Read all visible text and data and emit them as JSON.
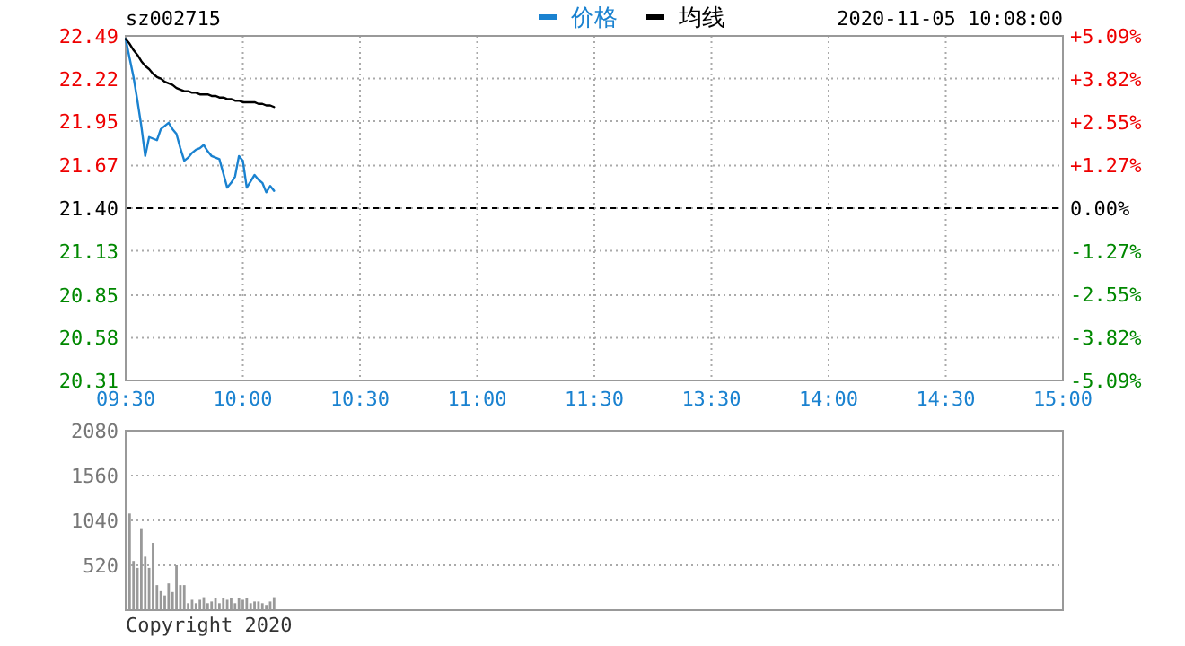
{
  "chart_data": [
    {
      "type": "line",
      "title": "sz002715",
      "legend": "top",
      "grid": true,
      "annotations": [
        "2020-11-05 10:08:00"
      ],
      "categories": [
        "09:30",
        null,
        null,
        null,
        null,
        null,
        null,
        null,
        null,
        null,
        null,
        null,
        null,
        null,
        null,
        null,
        null,
        null,
        null,
        null,
        null,
        null,
        null,
        null,
        null,
        null,
        null,
        null,
        null,
        null,
        "10:00",
        null,
        null,
        null,
        null,
        null,
        null,
        null,
        null,
        null,
        null,
        null,
        null,
        null,
        null,
        null,
        null,
        null,
        null,
        null,
        null,
        null,
        null,
        null,
        null,
        null,
        null,
        null,
        null,
        null,
        "10:30",
        null,
        null,
        null,
        null,
        null,
        null,
        null,
        null,
        null,
        null,
        null,
        null,
        null,
        null,
        null,
        null,
        null,
        null,
        null,
        null,
        null,
        null,
        null,
        null,
        null,
        null,
        null,
        null,
        null,
        "11:00",
        null,
        null,
        null,
        null,
        null,
        null,
        null,
        null,
        null,
        null,
        null,
        null,
        null,
        null,
        null,
        null,
        null,
        null,
        null,
        null,
        null,
        null,
        null,
        null,
        null,
        null,
        null,
        null,
        null,
        "11:30",
        null,
        null,
        null,
        null,
        null,
        null,
        null,
        null,
        null,
        null,
        null,
        null,
        null,
        null,
        null,
        null,
        null,
        null,
        null,
        null,
        null,
        null,
        null,
        null,
        null,
        null,
        null,
        null,
        null,
        "13:30",
        null,
        null,
        null,
        null,
        null,
        null,
        null,
        null,
        null,
        null,
        null,
        null,
        null,
        null,
        null,
        null,
        null,
        null,
        null,
        null,
        null,
        null,
        null,
        null,
        null,
        null,
        null,
        null,
        null,
        "14:00",
        null,
        null,
        null,
        null,
        null,
        null,
        null,
        null,
        null,
        null,
        null,
        null,
        null,
        null,
        null,
        null,
        null,
        null,
        null,
        null,
        null,
        null,
        null,
        null,
        null,
        null,
        null,
        null,
        null,
        "14:30",
        null,
        null,
        null,
        null,
        null,
        null,
        null,
        null,
        null,
        null,
        null,
        null,
        null,
        null,
        null,
        null,
        null,
        null,
        null,
        null,
        null,
        null,
        null,
        null,
        null,
        null,
        null,
        null,
        null,
        "15:00"
      ],
      "ylim": [
        20.31,
        22.49
      ],
      "yticks": [
        22.49,
        22.22,
        21.95,
        21.67,
        {
          "value": 21.4,
          "label": "21.40"
        },
        21.13,
        20.85,
        20.58,
        20.31
      ],
      "y2lim": [
        -5.09,
        5.09
      ],
      "y2ticks": [
        {
          "value": 5.09,
          "label": "+5.09%"
        },
        {
          "value": 3.82,
          "label": "+3.82%"
        },
        {
          "value": 2.55,
          "label": "+2.55%"
        },
        {
          "value": 1.27,
          "label": "+1.27%"
        },
        {
          "value": 0,
          "label": "0.00%"
        },
        {
          "value": -1.27,
          "label": "-1.27%"
        },
        {
          "value": -2.55,
          "label": "-2.55%"
        },
        {
          "value": -3.82,
          "label": "-3.82%"
        },
        {
          "value": -5.09,
          "label": "-5.09%"
        }
      ],
      "ref_lines": [
        {
          "axis": "y",
          "value": 21.4,
          "color": "#000000",
          "line_style": "dashed"
        }
      ],
      "series": [
        {
          "name": "价格",
          "color": "#1a82d0",
          "values": [
            22.47,
            22.35,
            22.23,
            22.08,
            21.92,
            21.73,
            21.85,
            21.84,
            21.83,
            21.9,
            21.92,
            21.94,
            21.9,
            21.87,
            21.78,
            21.7,
            21.72,
            21.75,
            21.77,
            21.78,
            21.8,
            21.76,
            21.73,
            21.72,
            21.71,
            21.62,
            21.53,
            21.56,
            21.6,
            21.73,
            21.7,
            21.53,
            21.57,
            21.61,
            21.58,
            21.56,
            21.5,
            21.54,
            21.51,
            null,
            null,
            null,
            null,
            null,
            null,
            null,
            null,
            null,
            null,
            null,
            null,
            null,
            null,
            null,
            null,
            null,
            null,
            null,
            null,
            null,
            null,
            null,
            null,
            null,
            null,
            null,
            null,
            null,
            null,
            null,
            null,
            null,
            null,
            null,
            null,
            null,
            null,
            null,
            null,
            null,
            null,
            null,
            null,
            null,
            null,
            null,
            null,
            null,
            null,
            null,
            null,
            null,
            null,
            null,
            null,
            null,
            null,
            null,
            null,
            null,
            null,
            null,
            null,
            null,
            null,
            null,
            null,
            null,
            null,
            null,
            null,
            null,
            null,
            null,
            null,
            null,
            null,
            null,
            null,
            null,
            null,
            null,
            null,
            null,
            null,
            null,
            null,
            null,
            null,
            null,
            null,
            null,
            null,
            null,
            null,
            null,
            null,
            null,
            null,
            null,
            null,
            null,
            null,
            null,
            null,
            null,
            null,
            null,
            null,
            null,
            null,
            null,
            null,
            null,
            null,
            null,
            null,
            null,
            null,
            null,
            null,
            null,
            null,
            null,
            null,
            null,
            null,
            null,
            null,
            null,
            null,
            null,
            null,
            null,
            null,
            null,
            null,
            null,
            null,
            null,
            null,
            null,
            null,
            null,
            null,
            null,
            null,
            null,
            null,
            null,
            null,
            null,
            null,
            null,
            null,
            null,
            null,
            null,
            null,
            null,
            null,
            null,
            null,
            null,
            null,
            null,
            null,
            null,
            null,
            null,
            null,
            null,
            null,
            null,
            null,
            null,
            null,
            null,
            null,
            null,
            null,
            null,
            null,
            null,
            null,
            null,
            null,
            null,
            null,
            null,
            null,
            null,
            null,
            null,
            null,
            null,
            null,
            null,
            null,
            null,
            null
          ]
        },
        {
          "name": "均线",
          "color": "#000000",
          "values": [
            22.47,
            22.44,
            22.4,
            22.37,
            22.33,
            22.3,
            22.28,
            22.25,
            22.23,
            22.22,
            22.2,
            22.19,
            22.18,
            22.16,
            22.15,
            22.14,
            22.14,
            22.13,
            22.13,
            22.12,
            22.12,
            22.12,
            22.11,
            22.11,
            22.1,
            22.1,
            22.09,
            22.09,
            22.08,
            22.08,
            22.07,
            22.07,
            22.07,
            22.07,
            22.06,
            22.06,
            22.05,
            22.05,
            22.04,
            null,
            null,
            null,
            null,
            null,
            null,
            null,
            null,
            null,
            null,
            null,
            null,
            null,
            null,
            null,
            null,
            null,
            null,
            null,
            null,
            null,
            null,
            null,
            null,
            null,
            null,
            null,
            null,
            null,
            null,
            null,
            null,
            null,
            null,
            null,
            null,
            null,
            null,
            null,
            null,
            null,
            null,
            null,
            null,
            null,
            null,
            null,
            null,
            null,
            null,
            null,
            null,
            null,
            null,
            null,
            null,
            null,
            null,
            null,
            null,
            null,
            null,
            null,
            null,
            null,
            null,
            null,
            null,
            null,
            null,
            null,
            null,
            null,
            null,
            null,
            null,
            null,
            null,
            null,
            null,
            null,
            null,
            null,
            null,
            null,
            null,
            null,
            null,
            null,
            null,
            null,
            null,
            null,
            null,
            null,
            null,
            null,
            null,
            null,
            null,
            null,
            null,
            null,
            null,
            null,
            null,
            null,
            null,
            null,
            null,
            null,
            null,
            null,
            null,
            null,
            null,
            null,
            null,
            null,
            null,
            null,
            null,
            null,
            null,
            null,
            null,
            null,
            null,
            null,
            null,
            null,
            null,
            null,
            null,
            null,
            null,
            null,
            null,
            null,
            null,
            null,
            null,
            null,
            null,
            null,
            null,
            null,
            null,
            null,
            null,
            null,
            null,
            null,
            null,
            null,
            null,
            null,
            null,
            null,
            null,
            null,
            null,
            null,
            null,
            null,
            null,
            null,
            null,
            null,
            null,
            null,
            null,
            null,
            null,
            null,
            null,
            null,
            null,
            null,
            null,
            null,
            null,
            null,
            null,
            null,
            null,
            null,
            null,
            null,
            null,
            null,
            null,
            null,
            null,
            null,
            null,
            null,
            null,
            null,
            null,
            null,
            null
          ]
        }
      ]
    },
    {
      "type": "bar",
      "grid": "y",
      "tick_labels": "y",
      "annotations": [
        "Copyright 2020"
      ],
      "color": "#999999",
      "categories": [
        null,
        null,
        null,
        null,
        null,
        null,
        null,
        null,
        null,
        null,
        null,
        null,
        null,
        null,
        null,
        null,
        null,
        null,
        null,
        null,
        null,
        null,
        null,
        null,
        null,
        null,
        null,
        null,
        null,
        null,
        null,
        null,
        null,
        null,
        null,
        null,
        null,
        null,
        null,
        null,
        null,
        null,
        null,
        null,
        null,
        null,
        null,
        null,
        null,
        null,
        null,
        null,
        null,
        null,
        null,
        null,
        null,
        null,
        null,
        null,
        null,
        null,
        null,
        null,
        null,
        null,
        null,
        null,
        null,
        null,
        null,
        null,
        null,
        null,
        null,
        null,
        null,
        null,
        null,
        null,
        null,
        null,
        null,
        null,
        null,
        null,
        null,
        null,
        null,
        null,
        null,
        null,
        null,
        null,
        null,
        null,
        null,
        null,
        null,
        null,
        null,
        null,
        null,
        null,
        null,
        null,
        null,
        null,
        null,
        null,
        null,
        null,
        null,
        null,
        null,
        null,
        null,
        null,
        null,
        null,
        null,
        null,
        null,
        null,
        null,
        null,
        null,
        null,
        null,
        null,
        null,
        null,
        null,
        null,
        null,
        null,
        null,
        null,
        null,
        null,
        null,
        null,
        null,
        null,
        null,
        null,
        null,
        null,
        null,
        null,
        null,
        null,
        null,
        null,
        null,
        null,
        null,
        null,
        null,
        null,
        null,
        null,
        null,
        null,
        null,
        null,
        null,
        null,
        null,
        null,
        null,
        null,
        null,
        null,
        null,
        null,
        null,
        null,
        null,
        null,
        null,
        null,
        null,
        null,
        null,
        null,
        null,
        null,
        null,
        null,
        null,
        null,
        null,
        null,
        null,
        null,
        null,
        null,
        null,
        null,
        null,
        null,
        null,
        null,
        null,
        null,
        null,
        null,
        null,
        null,
        null,
        null,
        null,
        null,
        null,
        null,
        null,
        null,
        null,
        null,
        null,
        null,
        null,
        null,
        null,
        null,
        null,
        null,
        null,
        null,
        null,
        null,
        null,
        null,
        null,
        null,
        null,
        null,
        null,
        null,
        null
      ],
      "ylim": [
        0,
        2080
      ],
      "yticks": [
        520,
        1040,
        1560,
        2080
      ],
      "values": [
        null,
        1120,
        570,
        490,
        940,
        620,
        490,
        780,
        290,
        220,
        170,
        310,
        210,
        520,
        290,
        290,
        80,
        120,
        80,
        120,
        150,
        80,
        100,
        140,
        80,
        140,
        120,
        140,
        80,
        140,
        120,
        140,
        80,
        100,
        100,
        80,
        60,
        100,
        150,
        null,
        null,
        null,
        null,
        null,
        null,
        null,
        null,
        null,
        null,
        null,
        null,
        null,
        null,
        null,
        null,
        null,
        null,
        null,
        null,
        null,
        null,
        null,
        null,
        null,
        null,
        null,
        null,
        null,
        null,
        null,
        null,
        null,
        null,
        null,
        null,
        null,
        null,
        null,
        null,
        null,
        null,
        null,
        null,
        null,
        null,
        null,
        null,
        null,
        null,
        null,
        null,
        null,
        null,
        null,
        null,
        null,
        null,
        null,
        null,
        null,
        null,
        null,
        null,
        null,
        null,
        null,
        null,
        null,
        null,
        null,
        null,
        null,
        null,
        null,
        null,
        null,
        null,
        null,
        null,
        null,
        null,
        null,
        null,
        null,
        null,
        null,
        null,
        null,
        null,
        null,
        null,
        null,
        null,
        null,
        null,
        null,
        null,
        null,
        null,
        null,
        null,
        null,
        null,
        null,
        null,
        null,
        null,
        null,
        null,
        null,
        null,
        null,
        null,
        null,
        null,
        null,
        null,
        null,
        null,
        null,
        null,
        null,
        null,
        null,
        null,
        null,
        null,
        null,
        null,
        null,
        null,
        null,
        null,
        null,
        null,
        null,
        null,
        null,
        null,
        null,
        null,
        null,
        null,
        null,
        null,
        null,
        null,
        null,
        null,
        null,
        null,
        null,
        null,
        null,
        null,
        null,
        null,
        null,
        null,
        null,
        null,
        null,
        null,
        null,
        null,
        null,
        null,
        null,
        null,
        null,
        null,
        null,
        null,
        null,
        null,
        null,
        null,
        null,
        null,
        null,
        null,
        null,
        null,
        null,
        null,
        null,
        null,
        null,
        null,
        null,
        null,
        null,
        null,
        null,
        null,
        null,
        null,
        null,
        null,
        null,
        null
      ]
    }
  ]
}
